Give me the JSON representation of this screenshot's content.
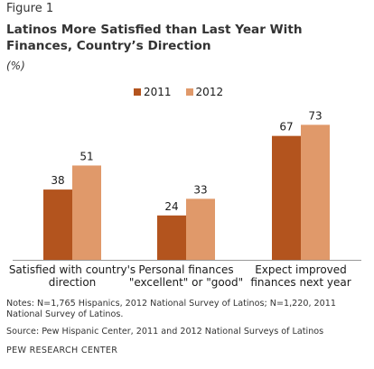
{
  "figure_label": "Figure 1",
  "title": "Latinos More Satisfied than Last Year With Finances, Country’s Direction",
  "units": "(%)",
  "notes": "Notes: N=1,765 Hispanics, 2012 National Survey of Latinos; N=1,220,  2011 National Survey of Latinos.",
  "source": "Source: Pew Hispanic Center, 2011 and 2012 National Surveys of Latinos",
  "brand": "PEW RESEARCH CENTER",
  "colors": {
    "s2011": "#b3541e",
    "s2012": "#e0996a"
  },
  "chart_data": {
    "type": "bar",
    "categories": [
      [
        "Satisfied with country's",
        "direction"
      ],
      [
        "Personal finances",
        "\"excellent\" or \"good\""
      ],
      [
        "Expect improved",
        "finances next year"
      ]
    ],
    "series": [
      {
        "name": "2011",
        "values": [
          38,
          24,
          67
        ]
      },
      {
        "name": "2012",
        "values": [
          51,
          33,
          73
        ]
      }
    ],
    "ylim": [
      0,
      80
    ],
    "legend_position": "top-center",
    "grid": false
  }
}
